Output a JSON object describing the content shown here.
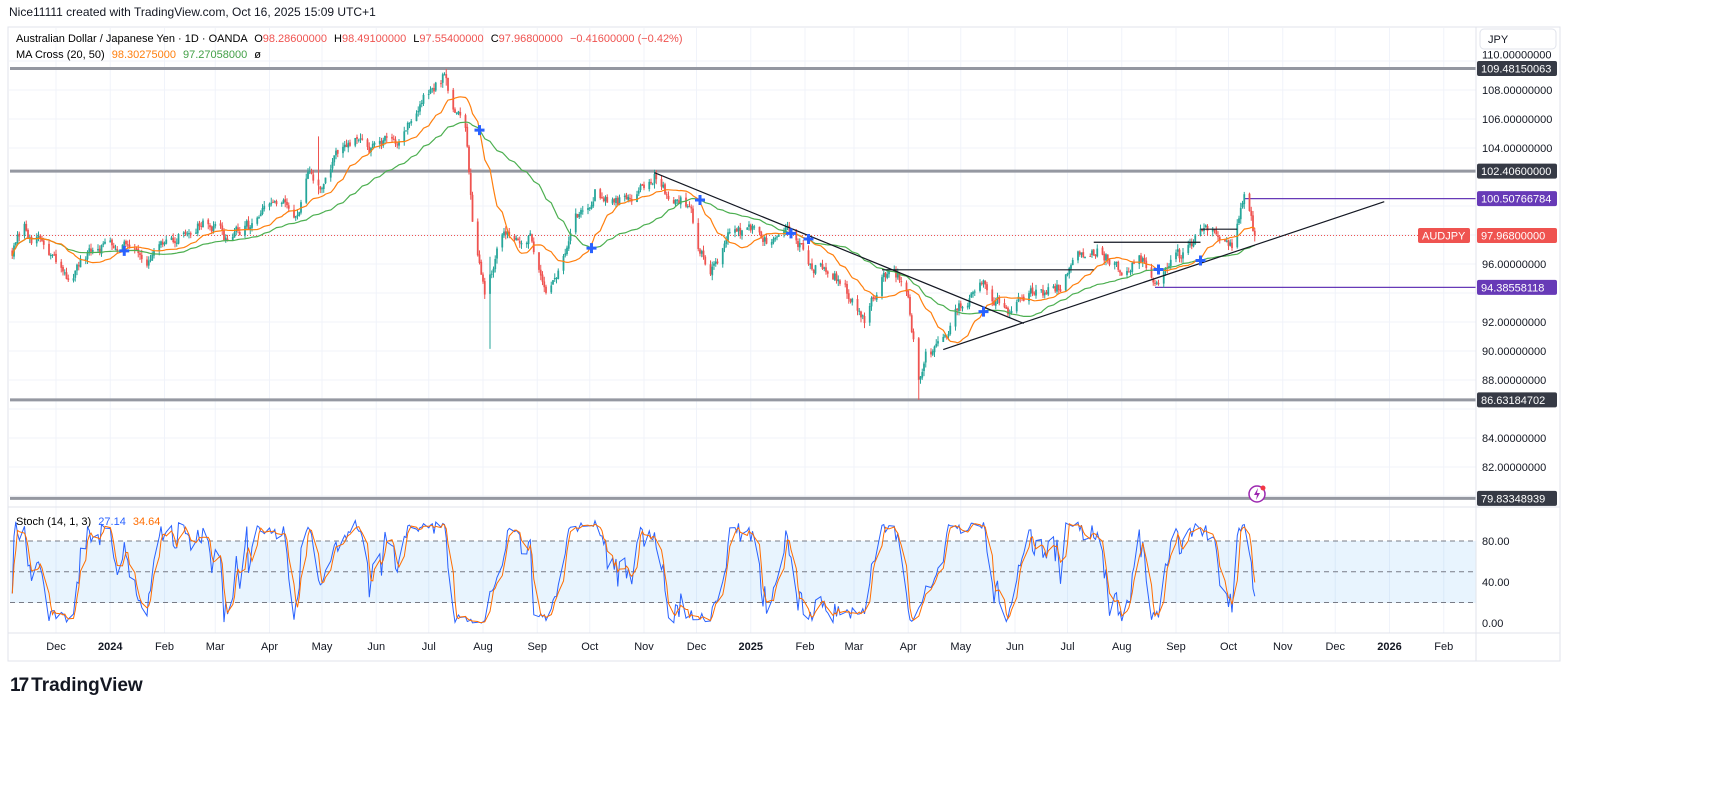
{
  "header": {
    "attribution": "Nice11111 created with TradingView.com, Oct 16, 2025 15:09 UTC+1"
  },
  "legend": {
    "symbol": "Australian Dollar / Japanese Yen · 1D · OANDA",
    "o_label": "O",
    "o": "98.28600000",
    "h_label": "H",
    "h": "98.49100000",
    "l_label": "L",
    "l": "97.55400000",
    "c_label": "C",
    "c": "97.96800000",
    "change": "−0.41600000 (−0.42%)",
    "ma_title": "MA Cross (20, 50)",
    "ma_fast": "98.30275000",
    "ma_slow": "97.27058000",
    "ma_extra": "ø",
    "stoch_title": "Stoch (14, 1, 3)",
    "stoch_k": "27.14",
    "stoch_d": "34.64"
  },
  "currency_button": "JPY",
  "symbol_tag": "AUDJPY",
  "logo": {
    "mark": "17",
    "text": "TradingView"
  },
  "colors": {
    "up": "#26a69a",
    "down": "#ef5350",
    "ma_fast": "#ff7f0e",
    "ma_slow": "#4caf50",
    "stoch_k": "#2962ff",
    "stoch_d": "#ff6d00",
    "level": "#9598a1",
    "purple": "#673ab7",
    "cross": "#2962ff"
  },
  "chart_data": {
    "type": "candlestick",
    "title": "Australian Dollar / Japanese Yen · 1D · OANDA",
    "ylim": [
      79,
      110.5
    ],
    "price_ticks": [
      "110.00000000",
      "108.00000000",
      "106.00000000",
      "104.00000000",
      "96.00000000",
      "92.00000000",
      "90.00000000",
      "88.00000000",
      "84.00000000",
      "82.00000000"
    ],
    "price_tick_values": [
      110,
      108,
      106,
      104,
      96,
      92,
      90,
      88,
      84,
      82
    ],
    "time_ticks": [
      {
        "label": "Dec",
        "date": "2023-12-01"
      },
      {
        "label": "2024",
        "date": "2024-01-01",
        "bold": true
      },
      {
        "label": "Feb",
        "date": "2024-02-01"
      },
      {
        "label": "Mar",
        "date": "2024-03-01"
      },
      {
        "label": "Apr",
        "date": "2024-04-01"
      },
      {
        "label": "May",
        "date": "2024-05-01"
      },
      {
        "label": "Jun",
        "date": "2024-06-01"
      },
      {
        "label": "Jul",
        "date": "2024-07-01"
      },
      {
        "label": "Aug",
        "date": "2024-08-01"
      },
      {
        "label": "Sep",
        "date": "2024-09-01"
      },
      {
        "label": "Oct",
        "date": "2024-10-01"
      },
      {
        "label": "Nov",
        "date": "2024-11-01"
      },
      {
        "label": "Dec",
        "date": "2024-12-01"
      },
      {
        "label": "2025",
        "date": "2025-01-01",
        "bold": true
      },
      {
        "label": "Feb",
        "date": "2025-02-01"
      },
      {
        "label": "Mar",
        "date": "2025-03-01"
      },
      {
        "label": "Apr",
        "date": "2025-04-01"
      },
      {
        "label": "May",
        "date": "2025-05-01"
      },
      {
        "label": "Jun",
        "date": "2025-06-01"
      },
      {
        "label": "Jul",
        "date": "2025-07-01"
      },
      {
        "label": "Aug",
        "date": "2025-08-01"
      },
      {
        "label": "Sep",
        "date": "2025-09-01"
      },
      {
        "label": "Oct",
        "date": "2025-10-01"
      },
      {
        "label": "Nov",
        "date": "2025-11-01"
      },
      {
        "label": "Dec",
        "date": "2025-12-01"
      },
      {
        "label": "2026",
        "date": "2026-01-01",
        "bold": true
      },
      {
        "label": "Feb",
        "date": "2026-02-01"
      }
    ],
    "close_path": [
      [
        "2023-11-06",
        97.0
      ],
      [
        "2023-11-13",
        98.2
      ],
      [
        "2023-11-22",
        97.7
      ],
      [
        "2023-12-06",
        94.9
      ],
      [
        "2023-12-20",
        96.4
      ],
      [
        "2024-01-01",
        97.7
      ],
      [
        "2024-01-15",
        97.6
      ],
      [
        "2024-01-24",
        96.1
      ],
      [
        "2024-02-07",
        97.7
      ],
      [
        "2024-02-21",
        98.9
      ],
      [
        "2024-03-08",
        97.7
      ],
      [
        "2024-03-21",
        98.5
      ],
      [
        "2024-04-04",
        100.1
      ],
      [
        "2024-04-18",
        99.4
      ],
      [
        "2024-04-24",
        102.1
      ],
      [
        "2024-04-30",
        101.1
      ],
      [
        "2024-05-08",
        103.2
      ],
      [
        "2024-05-20",
        104.2
      ],
      [
        "2024-06-03",
        104.0
      ],
      [
        "2024-06-12",
        104.5
      ],
      [
        "2024-06-26",
        107.0
      ],
      [
        "2024-07-08",
        108.7
      ],
      [
        "2024-07-10",
        109.3
      ],
      [
        "2024-07-16",
        106.6
      ],
      [
        "2024-07-22",
        105.2
      ],
      [
        "2024-07-26",
        99.4
      ],
      [
        "2024-08-02",
        94.2
      ],
      [
        "2024-08-08",
        96.6
      ],
      [
        "2024-08-16",
        98.3
      ],
      [
        "2024-08-28",
        97.6
      ],
      [
        "2024-09-06",
        94.6
      ],
      [
        "2024-09-13",
        95.3
      ],
      [
        "2024-09-23",
        99.0
      ],
      [
        "2024-10-04",
        101.1
      ],
      [
        "2024-10-18",
        100.4
      ],
      [
        "2024-10-28",
        101.2
      ],
      [
        "2024-11-07",
        102.1
      ],
      [
        "2024-11-15",
        100.8
      ],
      [
        "2024-11-27",
        100.1
      ],
      [
        "2024-12-03",
        97.0
      ],
      [
        "2024-12-09",
        95.9
      ],
      [
        "2024-12-20",
        97.9
      ],
      [
        "2025-01-01",
        98.3
      ],
      [
        "2025-01-13",
        97.3
      ],
      [
        "2025-01-23",
        98.3
      ],
      [
        "2025-02-04",
        95.9
      ],
      [
        "2025-02-14",
        95.9
      ],
      [
        "2025-02-27",
        93.9
      ],
      [
        "2025-03-07",
        92.5
      ],
      [
        "2025-03-17",
        94.9
      ],
      [
        "2025-03-24",
        95.6
      ],
      [
        "2025-03-31",
        94.2
      ],
      [
        "2025-04-07",
        88.0
      ],
      [
        "2025-04-11",
        90.0
      ],
      [
        "2025-04-21",
        90.3
      ],
      [
        "2025-04-28",
        92.8
      ],
      [
        "2025-05-06",
        93.5
      ],
      [
        "2025-05-12",
        95.2
      ],
      [
        "2025-05-19",
        93.1
      ],
      [
        "2025-05-26",
        92.8
      ],
      [
        "2025-06-04",
        93.5
      ],
      [
        "2025-06-16",
        94.2
      ],
      [
        "2025-06-27",
        94.6
      ],
      [
        "2025-07-08",
        96.6
      ],
      [
        "2025-07-17",
        97.1
      ],
      [
        "2025-07-25",
        96.6
      ],
      [
        "2025-08-01",
        95.7
      ],
      [
        "2025-08-11",
        96.4
      ],
      [
        "2025-08-20",
        94.9
      ],
      [
        "2025-08-29",
        95.9
      ],
      [
        "2025-09-05",
        96.6
      ],
      [
        "2025-09-15",
        98.3
      ],
      [
        "2025-09-26",
        97.6
      ],
      [
        "2025-10-03",
        97.3
      ],
      [
        "2025-10-08",
        100.1
      ],
      [
        "2025-10-10",
        100.4
      ],
      [
        "2025-10-13",
        99.2
      ],
      [
        "2025-10-16",
        97.968
      ]
    ],
    "wick_extremes": [
      [
        "2024-04-29",
        104.8,
        100.8
      ],
      [
        "2024-07-11",
        109.45,
        108.3
      ],
      [
        "2024-08-05",
        96.5,
        90.15
      ],
      [
        "2024-11-07",
        102.4,
        101.2
      ],
      [
        "2025-04-07",
        90.2,
        86.63
      ],
      [
        "2025-10-10",
        100.9,
        99.8
      ]
    ],
    "horizontal_levels": [
      {
        "value": 109.48150063,
        "label": "109.48150063",
        "style": "gray"
      },
      {
        "value": 102.406,
        "label": "102.40600000",
        "style": "gray"
      },
      {
        "value": 86.63184702,
        "label": "86.63184702",
        "style": "gray"
      },
      {
        "value": 79.83348939,
        "label": "79.83348939",
        "style": "gray"
      },
      {
        "value": 100.50766784,
        "label": "100.50766784",
        "style": "purple",
        "from": "2025-10-10"
      },
      {
        "value": 94.38558118,
        "label": "94.38558118",
        "style": "purple",
        "from": "2025-08-20"
      }
    ],
    "last_price": {
      "value": 97.968,
      "label": "97.96800000"
    },
    "trend_lines": [
      {
        "from": [
          "2024-11-07",
          102.3
        ],
        "to": [
          "2025-06-06",
          91.9
        ]
      },
      {
        "from": [
          "2025-04-21",
          90.1
        ],
        "to": [
          "2025-12-29",
          100.3
        ]
      },
      {
        "from": [
          "2025-03-17",
          95.6
        ],
        "to": [
          "2025-07-16",
          95.6
        ]
      },
      {
        "from": [
          "2025-07-16",
          97.5
        ],
        "to": [
          "2025-09-15",
          97.5
        ]
      },
      {
        "from": [
          "2025-09-15",
          98.4
        ],
        "to": [
          "2025-10-06",
          98.4
        ]
      }
    ],
    "stoch": {
      "k_period": 14,
      "k_smooth": 1,
      "d_period": 3,
      "ticks": [
        "80.00",
        "40.00",
        "0.00"
      ],
      "tick_values": [
        80,
        40,
        0
      ],
      "bands": [
        20,
        50,
        80
      ]
    },
    "ma": {
      "fast": 20,
      "slow": 50
    }
  }
}
